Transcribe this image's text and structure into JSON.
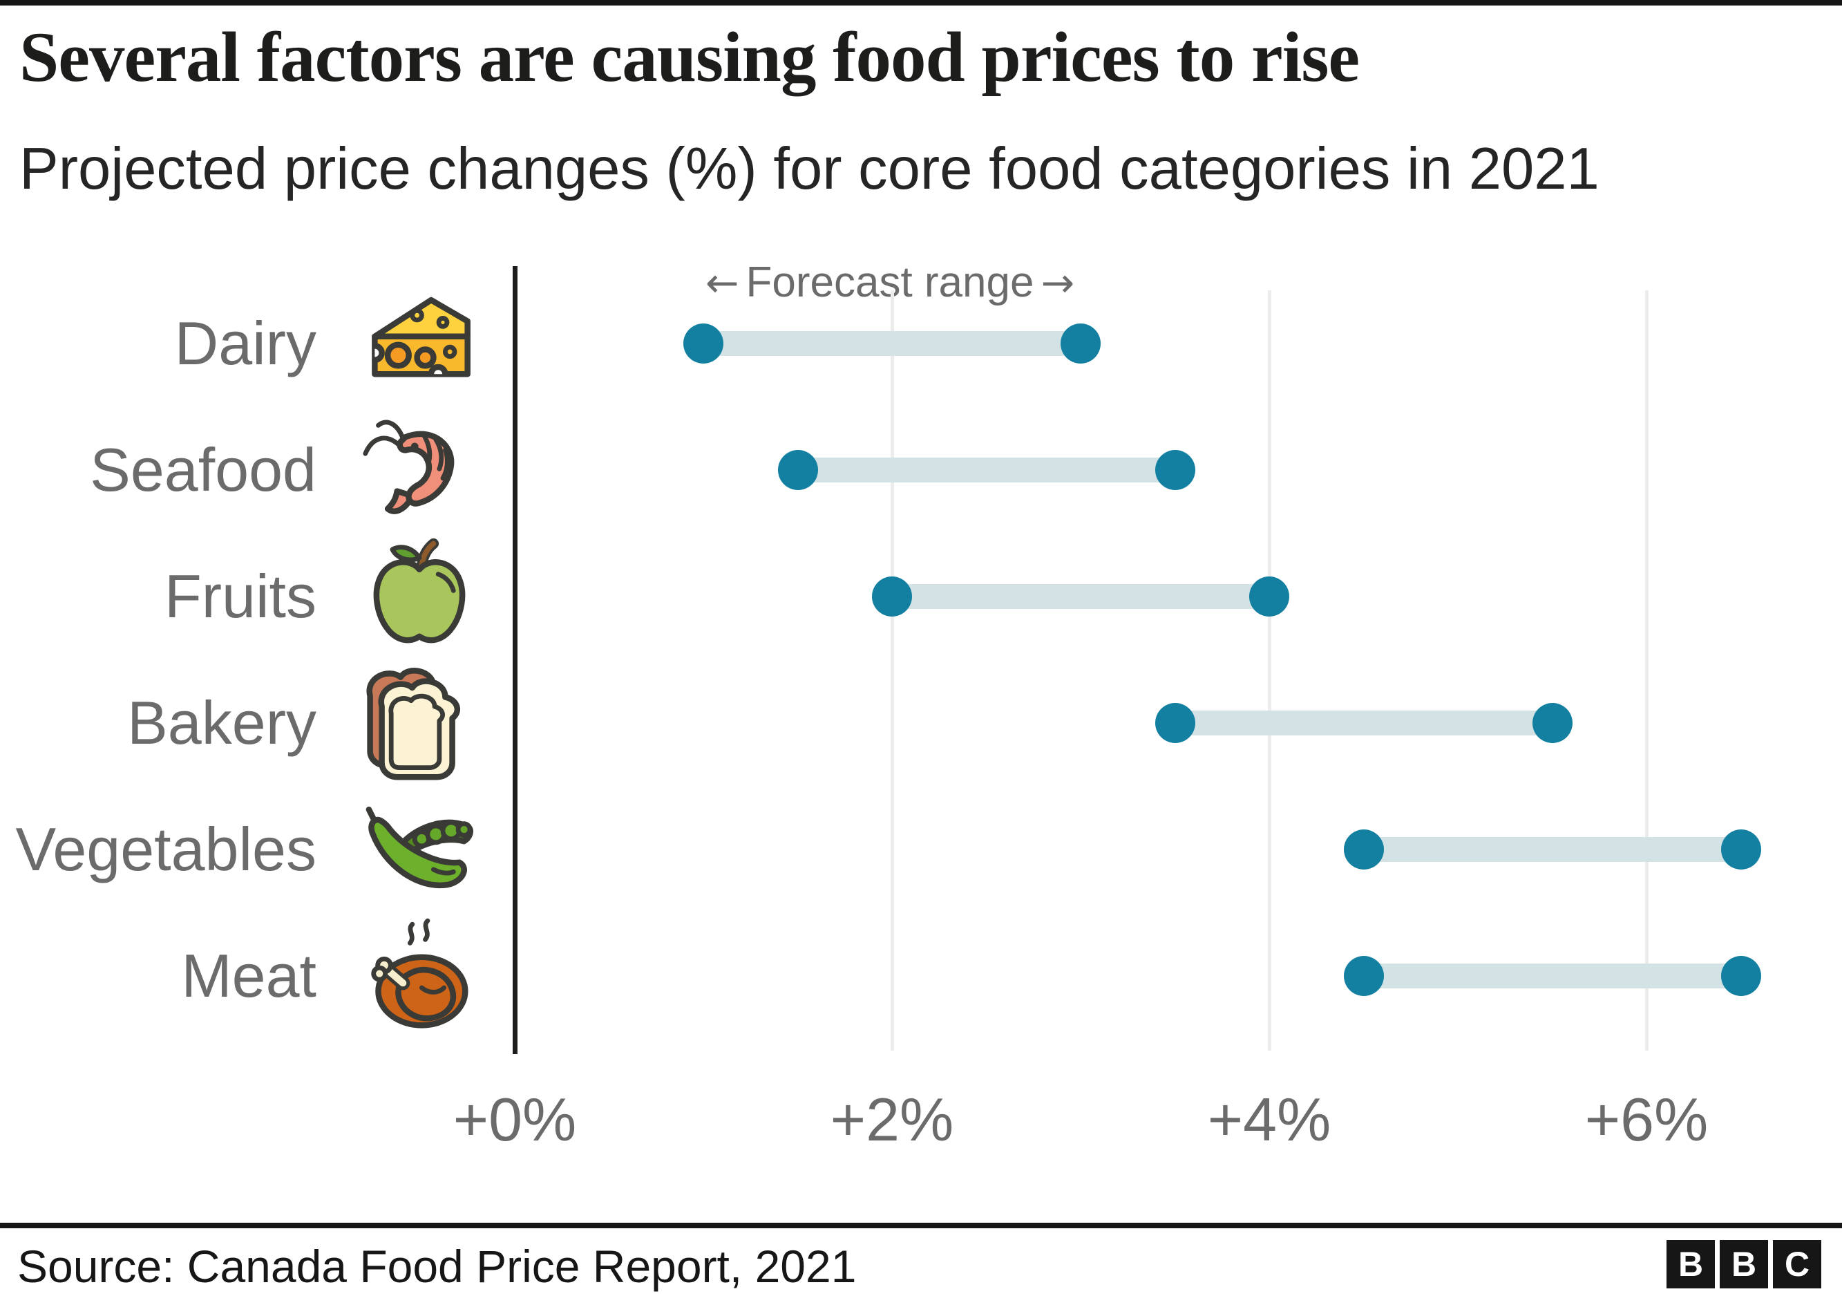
{
  "header": {
    "title": "Several factors are causing food prices to rise",
    "subtitle": "Projected price changes (%) for core food categories in 2021"
  },
  "annotation": {
    "left_arrow": "←",
    "label": "Forecast range",
    "right_arrow": "→"
  },
  "footer": {
    "source": "Source: Canada Food Price Report, 2021",
    "logo_letters": [
      "B",
      "B",
      "C"
    ]
  },
  "colors": {
    "accent_teal": "#1380a1",
    "range_bar": "#d3e2e4",
    "grid_line": "#ececec",
    "axis_line": "#1d1d1b",
    "label_grey": "#6b6b6b",
    "text_dark": "#1d1d1b"
  },
  "chart_data": {
    "type": "dumbbell-range",
    "title": "Several factors are causing food prices to rise",
    "subtitle": "Projected price changes (%) for core food categories in 2021",
    "categories": [
      "Dairy",
      "Seafood",
      "Fruits",
      "Bakery",
      "Vegetables",
      "Meat"
    ],
    "icons": [
      "cheese-icon",
      "shrimp-icon",
      "apple-icon",
      "bread-icon",
      "peas-icon",
      "roast-meat-icon"
    ],
    "series": [
      {
        "name": "forecast_min_pct",
        "values": [
          1.0,
          1.5,
          2.0,
          3.5,
          4.5,
          4.5
        ]
      },
      {
        "name": "forecast_max_pct",
        "values": [
          3.0,
          3.5,
          4.0,
          5.5,
          6.5,
          6.5
        ]
      }
    ],
    "x_ticks": [
      {
        "value": 0,
        "label": "+0%"
      },
      {
        "value": 2,
        "label": "+2%"
      },
      {
        "value": 4,
        "label": "+4%"
      },
      {
        "value": 6,
        "label": "+6%"
      }
    ],
    "xlim": [
      0,
      7
    ],
    "units": "percent",
    "annotation": "← Forecast range →",
    "grid": "vertical-gridlines",
    "legend": "none"
  }
}
